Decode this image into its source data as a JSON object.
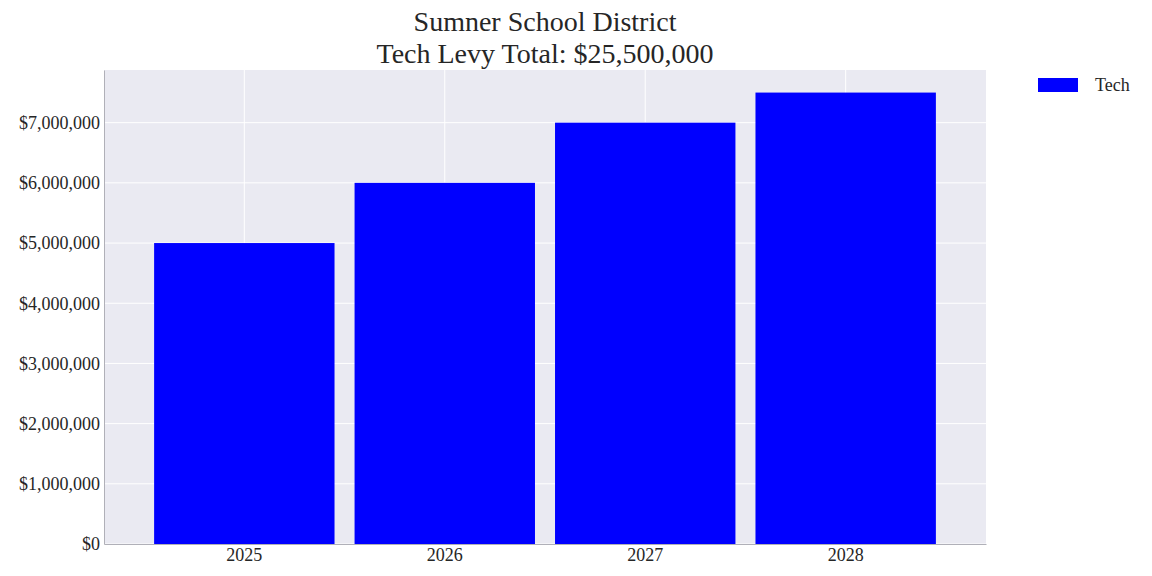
{
  "chart_data": {
    "type": "bar",
    "title": "Sumner School District",
    "subtitle": "Tech Levy Total: $25,500,000",
    "categories": [
      "2025",
      "2026",
      "2027",
      "2028"
    ],
    "series": [
      {
        "name": "Tech",
        "color": "#0000ff",
        "values": [
          5000000,
          6000000,
          7000000,
          7500000
        ]
      }
    ],
    "ylim": [
      0,
      7875000
    ],
    "yticks": [
      {
        "value": 0,
        "label": "$0"
      },
      {
        "value": 1000000,
        "label": "$1,000,000"
      },
      {
        "value": 2000000,
        "label": "$2,000,000"
      },
      {
        "value": 3000000,
        "label": "$3,000,000"
      },
      {
        "value": 4000000,
        "label": "$4,000,000"
      },
      {
        "value": 5000000,
        "label": "$5,000,000"
      },
      {
        "value": 6000000,
        "label": "$6,000,000"
      },
      {
        "value": 7000000,
        "label": "$7,000,000"
      }
    ],
    "grid": true,
    "legend": "upper right"
  }
}
